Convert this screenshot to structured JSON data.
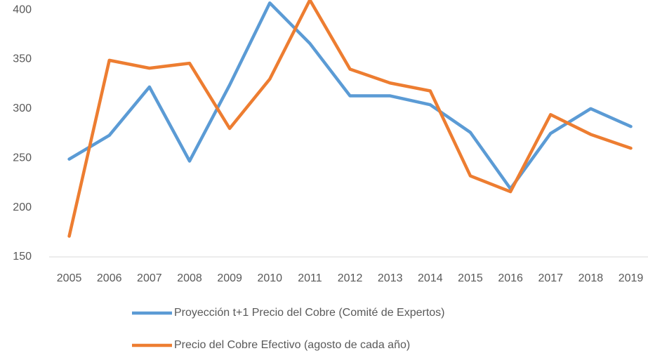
{
  "chart_data": {
    "type": "line",
    "categories": [
      "2005",
      "2006",
      "2007",
      "2008",
      "2009",
      "2010",
      "2011",
      "2012",
      "2013",
      "2014",
      "2015",
      "2016",
      "2017",
      "2018",
      "2019"
    ],
    "series": [
      {
        "name": "Proyección t+1 Precio del Cobre (Comité de Expertos)",
        "color": "#5b9bd5",
        "values": [
          249,
          273,
          322,
          247,
          324,
          407,
          366,
          313,
          313,
          304,
          276,
          219,
          275,
          300,
          282
        ]
      },
      {
        "name": "Precio del Cobre Efectivo (agosto de cada año)",
        "color": "#ed7d31",
        "values": [
          171,
          349,
          341,
          346,
          280,
          330,
          410,
          340,
          326,
          318,
          232,
          216,
          294,
          274,
          260
        ]
      }
    ],
    "ylim": [
      150,
      410
    ],
    "yticks": [
      150,
      200,
      250,
      300,
      350,
      400
    ],
    "grid": false
  }
}
